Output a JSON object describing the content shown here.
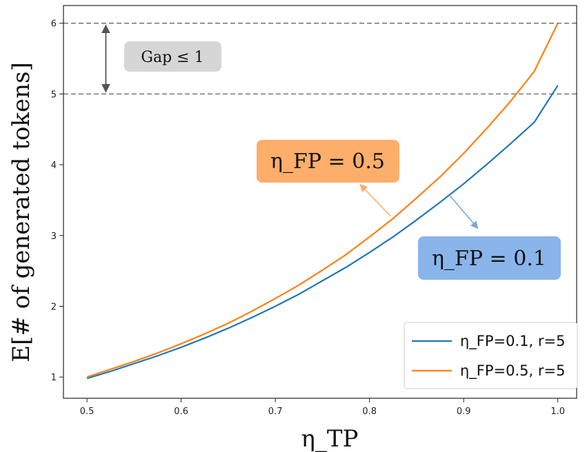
{
  "chart_data": {
    "type": "line",
    "title": "",
    "xlabel": "η_TP",
    "ylabel": "E[# of generated tokens]",
    "xlim": [
      0.475,
      1.02
    ],
    "ylim": [
      0.7,
      6.25
    ],
    "xticks": [
      0.5,
      0.6,
      0.7,
      0.8,
      0.9,
      1.0
    ],
    "xtick_labels": [
      "0.5",
      "0.6",
      "0.7",
      "0.8",
      "0.9",
      "1.0"
    ],
    "yticks": [
      1,
      2,
      3,
      4,
      5,
      6
    ],
    "ytick_labels": [
      "1",
      "2",
      "3",
      "4",
      "5",
      "6"
    ],
    "grid": false,
    "legend_position": "bottom-right",
    "x": [
      0.5,
      0.525,
      0.55,
      0.575,
      0.6,
      0.625,
      0.65,
      0.675,
      0.7,
      0.725,
      0.75,
      0.775,
      0.8,
      0.825,
      0.85,
      0.875,
      0.9,
      0.925,
      0.95,
      0.975,
      1.0
    ],
    "series": [
      {
        "name": "η_FP=0.1, r=5",
        "color": "#1f77b4",
        "values": [
          0.98,
          1.08,
          1.19,
          1.3,
          1.42,
          1.55,
          1.69,
          1.84,
          2.0,
          2.17,
          2.36,
          2.55,
          2.76,
          2.98,
          3.22,
          3.47,
          3.73,
          4.01,
          4.3,
          4.6,
          5.12
        ]
      },
      {
        "name": "η_FP=0.5, r=5",
        "color": "#ff7f0e",
        "values": [
          1.0,
          1.11,
          1.22,
          1.34,
          1.47,
          1.61,
          1.76,
          1.93,
          2.11,
          2.3,
          2.51,
          2.73,
          2.98,
          3.24,
          3.53,
          3.83,
          4.16,
          4.52,
          4.9,
          5.32,
          6.0
        ]
      }
    ],
    "reference_lines": [
      {
        "y": 6,
        "style": "dashed",
        "color": "#777777"
      },
      {
        "y": 5,
        "style": "dashed",
        "color": "#777777"
      }
    ],
    "annotations": [
      {
        "text": "Gap ≤ 1",
        "box_color": "#d6d6d6",
        "arrow_color": "#555555",
        "arrow_from_y": 6,
        "arrow_to_y": 5,
        "arrow_x": 0.52
      },
      {
        "text": "η_FP = 0.5",
        "box_color": "#fdae6b",
        "arrow_color": "#fdae6b",
        "points_to": [
          0.822,
          3.28
        ],
        "arrow_head": [
          0.79,
          3.72
        ]
      },
      {
        "text": "η_FP = 0.1",
        "box_color": "#89b5ea",
        "arrow_color": "#7aa7dd",
        "points_to": [
          0.885,
          3.57
        ],
        "arrow_head": [
          0.915,
          3.1
        ]
      }
    ]
  }
}
